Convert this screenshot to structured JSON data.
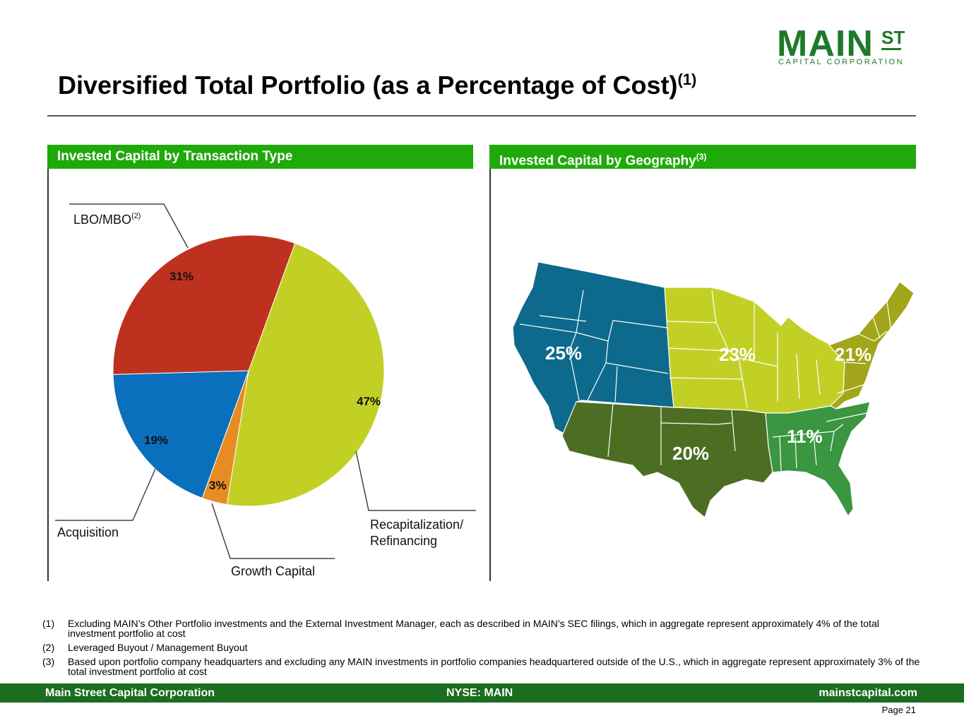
{
  "logo": {
    "main": "MAIN",
    "st": "ST",
    "sub": "CAPITAL CORPORATION"
  },
  "title": {
    "text": "Diversified Total Portfolio (as a Percentage of Cost)",
    "sup": "(1)"
  },
  "left_panel": {
    "title": "Invested Capital by Transaction Type"
  },
  "right_panel": {
    "title": "Invested Capital by Geography",
    "sup": "(3)"
  },
  "colors": {
    "header_green": "#20a90b",
    "footer_green": "#1b6d1f",
    "recap": "#c2d026",
    "lbo": "#be311f",
    "acquisition": "#0a6fbd",
    "growth": "#e68c22",
    "west": "#0d6a8c",
    "midwest": "#c2d026",
    "northeast": "#a3a51a",
    "southwest": "#4c6e22",
    "southeast": "#3a9640"
  },
  "chart_data": [
    {
      "type": "pie",
      "title": "Invested Capital by Transaction Type",
      "slices": [
        {
          "label": "Recapitalization/ Refinancing",
          "label_lines": [
            "Recapitalization/",
            "Refinancing"
          ],
          "value": 47,
          "pct_label": "47%",
          "color": "#c2d026"
        },
        {
          "label": "Growth Capital",
          "label_lines": [
            "Growth Capital"
          ],
          "value": 3,
          "pct_label": "3%",
          "color": "#e68c22"
        },
        {
          "label": "Acquisition",
          "label_lines": [
            "Acquisition"
          ],
          "value": 19,
          "pct_label": "19%",
          "color": "#0a6fbd"
        },
        {
          "label": "LBO/MBO",
          "label_lines": [
            "LBO/MBO"
          ],
          "label_sup": "(2)",
          "value": 31,
          "pct_label": "31%",
          "color": "#be311f"
        }
      ]
    },
    {
      "type": "map",
      "title": "Invested Capital by Geography",
      "regions": [
        {
          "name": "west",
          "value": 25,
          "pct_label": "25%",
          "color": "#0d6a8c"
        },
        {
          "name": "midwest",
          "value": 23,
          "pct_label": "23%",
          "color": "#c2d026"
        },
        {
          "name": "northeast",
          "value": 21,
          "pct_label": "21%",
          "color": "#a3a51a"
        },
        {
          "name": "southwest",
          "value": 20,
          "pct_label": "20%",
          "color": "#4c6e22"
        },
        {
          "name": "southeast",
          "value": 11,
          "pct_label": "11%",
          "color": "#3a9640"
        }
      ]
    }
  ],
  "footnotes": [
    {
      "num": "(1)",
      "text": "Excluding MAIN’s Other Portfolio investments and the External Investment Manager, each as described in MAIN’s SEC filings, which in aggregate represent approximately 4% of the total investment portfolio at cost"
    },
    {
      "num": "(2)",
      "text": "Leveraged Buyout / Management Buyout"
    },
    {
      "num": "(3)",
      "text": "Based upon portfolio company headquarters and excluding any MAIN investments in portfolio companies headquartered outside of the U.S., which in aggregate represent approximately 3% of the total investment portfolio at cost"
    }
  ],
  "footer": {
    "left": "Main Street Capital Corporation",
    "center": "NYSE: MAIN",
    "right": "mainstcapital.com"
  },
  "page": "Page  21"
}
